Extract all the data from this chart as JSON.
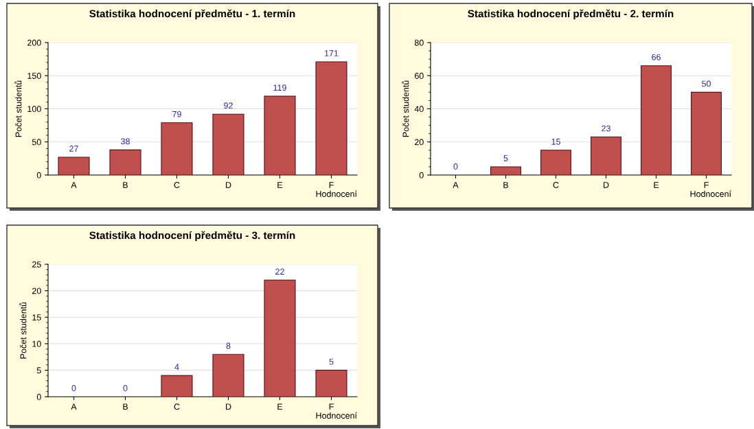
{
  "chart_data": [
    {
      "type": "bar",
      "title": "Statistika hodnocení předmětu - 1. termín",
      "xlabel": "Hodnocení",
      "ylabel": "Počet studentů",
      "categories": [
        "A",
        "B",
        "C",
        "D",
        "E",
        "F"
      ],
      "values": [
        27,
        38,
        79,
        92,
        119,
        171
      ],
      "color": "#c0504d",
      "ylim": [
        0,
        200
      ],
      "yticks": [
        0,
        50,
        100,
        150,
        200
      ],
      "grid": "y",
      "data_labels": true
    },
    {
      "type": "bar",
      "title": "Statistika hodnocení předmětu - 2. termín",
      "xlabel": "Hodnocení",
      "ylabel": "Počet studentů",
      "categories": [
        "A",
        "B",
        "C",
        "D",
        "E",
        "F"
      ],
      "values": [
        0,
        5,
        15,
        23,
        66,
        50
      ],
      "color": "#c0504d",
      "ylim": [
        0,
        80
      ],
      "yticks": [
        0,
        20,
        40,
        60,
        80
      ],
      "grid": "y",
      "data_labels": true
    },
    {
      "type": "bar",
      "title": "Statistika hodnocení předmětu - 3. termín",
      "xlabel": "Hodnocení",
      "ylabel": "Počet studentů",
      "categories": [
        "A",
        "B",
        "C",
        "D",
        "E",
        "F"
      ],
      "values": [
        0,
        0,
        4,
        8,
        22,
        5
      ],
      "color": "#c0504d",
      "ylim": [
        0,
        25
      ],
      "yticks": [
        0,
        5,
        10,
        15,
        20,
        25
      ],
      "grid": "y",
      "data_labels": true
    }
  ]
}
